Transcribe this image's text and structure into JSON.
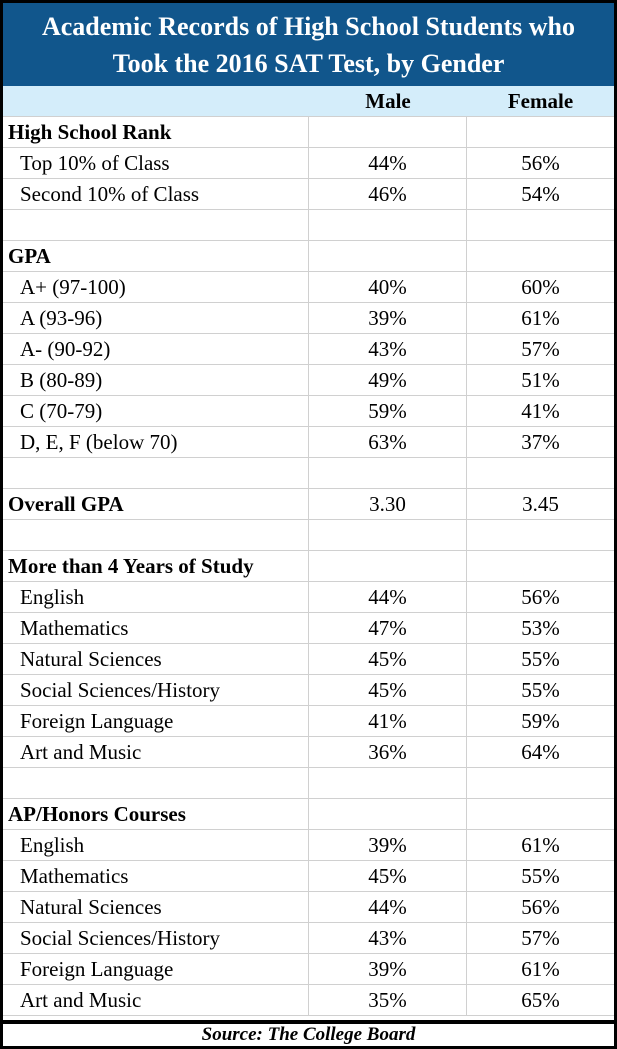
{
  "title": {
    "line1": "Academic Records of High School Students who",
    "line2": "Took the 2016 SAT Test, by Gender"
  },
  "columns": {
    "label": "",
    "male": "Male",
    "female": "Female"
  },
  "footer": {
    "source": "Source: The College Board"
  },
  "colors": {
    "title_bg": "#11568C",
    "title_text": "#FFFFFF",
    "header_bg": "#D4EDFA",
    "grid": "#D0D0D0",
    "border": "#000000"
  },
  "table": {
    "rows": [
      {
        "label": "High School Rank",
        "male": "",
        "female": "",
        "bold": true
      },
      {
        "label": "Top 10% of Class",
        "male": "44%",
        "female": "56%",
        "bold": false
      },
      {
        "label": "Second 10% of Class",
        "male": "46%",
        "female": "54%",
        "bold": false
      },
      {
        "label": "",
        "male": "",
        "female": "",
        "bold": false
      },
      {
        "label": "GPA",
        "male": "",
        "female": "",
        "bold": true
      },
      {
        "label": "A+ (97-100)",
        "male": "40%",
        "female": "60%",
        "bold": false
      },
      {
        "label": "A (93-96)",
        "male": "39%",
        "female": "61%",
        "bold": false
      },
      {
        "label": "A- (90-92)",
        "male": "43%",
        "female": "57%",
        "bold": false
      },
      {
        "label": "B (80-89)",
        "male": "49%",
        "female": "51%",
        "bold": false
      },
      {
        "label": "C (70-79)",
        "male": "59%",
        "female": "41%",
        "bold": false
      },
      {
        "label": "D, E, F (below 70)",
        "male": "63%",
        "female": "37%",
        "bold": false
      },
      {
        "label": "",
        "male": "",
        "female": "",
        "bold": false
      },
      {
        "label": "Overall GPA",
        "male": "3.30",
        "female": "3.45",
        "bold": true
      },
      {
        "label": "",
        "male": "",
        "female": "",
        "bold": false
      },
      {
        "label": "More than 4 Years of Study",
        "male": "",
        "female": "",
        "bold": true
      },
      {
        "label": "English",
        "male": "44%",
        "female": "56%",
        "bold": false
      },
      {
        "label": "Mathematics",
        "male": "47%",
        "female": "53%",
        "bold": false
      },
      {
        "label": "Natural Sciences",
        "male": "45%",
        "female": "55%",
        "bold": false
      },
      {
        "label": "Social Sciences/History",
        "male": "45%",
        "female": "55%",
        "bold": false
      },
      {
        "label": "Foreign Language",
        "male": "41%",
        "female": "59%",
        "bold": false
      },
      {
        "label": "Art and Music",
        "male": "36%",
        "female": "64%",
        "bold": false
      },
      {
        "label": "",
        "male": "",
        "female": "",
        "bold": false
      },
      {
        "label": "AP/Honors Courses",
        "male": "",
        "female": "",
        "bold": true
      },
      {
        "label": "English",
        "male": "39%",
        "female": "61%",
        "bold": false
      },
      {
        "label": "Mathematics",
        "male": "45%",
        "female": "55%",
        "bold": false
      },
      {
        "label": "Natural Sciences",
        "male": "44%",
        "female": "56%",
        "bold": false
      },
      {
        "label": "Social Sciences/History",
        "male": "43%",
        "female": "57%",
        "bold": false
      },
      {
        "label": "Foreign Language",
        "male": "39%",
        "female": "61%",
        "bold": false
      },
      {
        "label": "Art and Music",
        "male": "35%",
        "female": "65%",
        "bold": false
      }
    ]
  },
  "chart_data": {
    "type": "table",
    "title": "Academic Records of High School Students who Took the 2016 SAT Test, by Gender",
    "columns": [
      "",
      "Male",
      "Female"
    ],
    "sections": [
      {
        "name": "High School Rank",
        "rows": [
          [
            "Top 10% of Class",
            "44%",
            "56%"
          ],
          [
            "Second 10% of Class",
            "46%",
            "54%"
          ]
        ]
      },
      {
        "name": "GPA",
        "rows": [
          [
            "A+ (97-100)",
            "40%",
            "60%"
          ],
          [
            "A (93-96)",
            "39%",
            "61%"
          ],
          [
            "A- (90-92)",
            "43%",
            "57%"
          ],
          [
            "B (80-89)",
            "49%",
            "51%"
          ],
          [
            "C (70-79)",
            "59%",
            "41%"
          ],
          [
            "D, E, F (below 70)",
            "63%",
            "37%"
          ]
        ]
      },
      {
        "name": "Overall GPA",
        "rows": [
          [
            "Overall GPA",
            "3.30",
            "3.45"
          ]
        ]
      },
      {
        "name": "More than 4 Years of Study",
        "rows": [
          [
            "English",
            "44%",
            "56%"
          ],
          [
            "Mathematics",
            "47%",
            "53%"
          ],
          [
            "Natural Sciences",
            "45%",
            "55%"
          ],
          [
            "Social Sciences/History",
            "45%",
            "55%"
          ],
          [
            "Foreign Language",
            "41%",
            "59%"
          ],
          [
            "Art and Music",
            "36%",
            "64%"
          ]
        ]
      },
      {
        "name": "AP/Honors Courses",
        "rows": [
          [
            "English",
            "39%",
            "61%"
          ],
          [
            "Mathematics",
            "45%",
            "55%"
          ],
          [
            "Natural Sciences",
            "44%",
            "56%"
          ],
          [
            "Social Sciences/History",
            "43%",
            "57%"
          ],
          [
            "Foreign Language",
            "39%",
            "61%"
          ],
          [
            "Art and Music",
            "35%",
            "65%"
          ]
        ]
      }
    ],
    "source": "Source: The College Board"
  }
}
